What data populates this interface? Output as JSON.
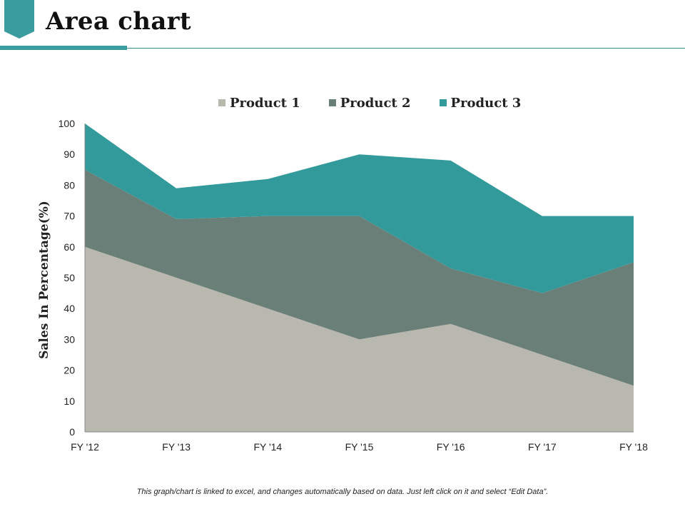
{
  "header": {
    "title": "Area chart",
    "accent_color": "#3A9C9F",
    "rule_color": "#3A8A8E"
  },
  "footnote": "This graph/chart is linked to excel, and changes automatically based on data. Just left click on it and select “Edit Data”.",
  "chart_data": {
    "type": "area",
    "stacked": true,
    "title": "",
    "xlabel": "",
    "ylabel": "Sales In Percentage(%)",
    "categories": [
      "FY '12",
      "FY '13",
      "FY '14",
      "FY '15",
      "FY '16",
      "FY '17",
      "FY '18"
    ],
    "ylim": [
      0,
      100
    ],
    "yticks": [
      "0",
      "10",
      "20",
      "30",
      "40",
      "50",
      "60",
      "70",
      "80",
      "90",
      "100"
    ],
    "grid": false,
    "legend_position": "top",
    "series": [
      {
        "name": "Product 1",
        "color": "#B8B8AF",
        "values": [
          60,
          50,
          40,
          30,
          35,
          25,
          15
        ]
      },
      {
        "name": "Product 2",
        "color": "#6A7F78",
        "values": [
          25,
          19,
          30,
          40,
          18,
          20,
          40
        ]
      },
      {
        "name": "Product 3",
        "color": "#339A9C",
        "values": [
          15,
          10,
          12,
          20,
          35,
          25,
          15
        ]
      }
    ]
  }
}
